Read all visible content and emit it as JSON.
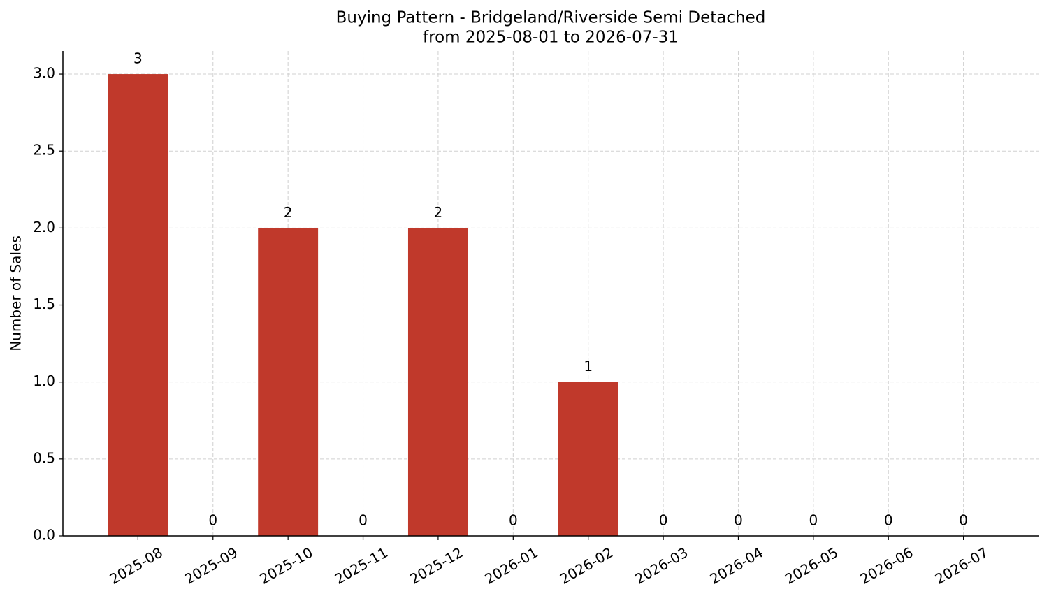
{
  "chart_data": {
    "type": "bar",
    "title": "Buying Pattern - Bridgeland/Riverside Semi Detached",
    "subtitle": "from 2025-08-01 to 2026-07-31",
    "y_label": "Number of Sales",
    "categories": [
      "2025-08",
      "2025-09",
      "2025-10",
      "2025-11",
      "2025-12",
      "2026-01",
      "2026-02",
      "2026-03",
      "2026-04",
      "2026-05",
      "2026-06",
      "2026-07"
    ],
    "values": [
      3,
      0,
      2,
      0,
      2,
      0,
      1,
      0,
      0,
      0,
      0,
      0
    ],
    "color": "#c0392b",
    "ylim": [
      0,
      3.15
    ],
    "yticks": [
      {
        "value": 0,
        "label": "0.0"
      },
      0.5,
      {
        "value": 1,
        "label": "1.0"
      },
      1.5,
      {
        "value": 2,
        "label": "2.0"
      },
      2.5,
      {
        "value": 3,
        "label": "3.0"
      }
    ],
    "grid": true
  }
}
